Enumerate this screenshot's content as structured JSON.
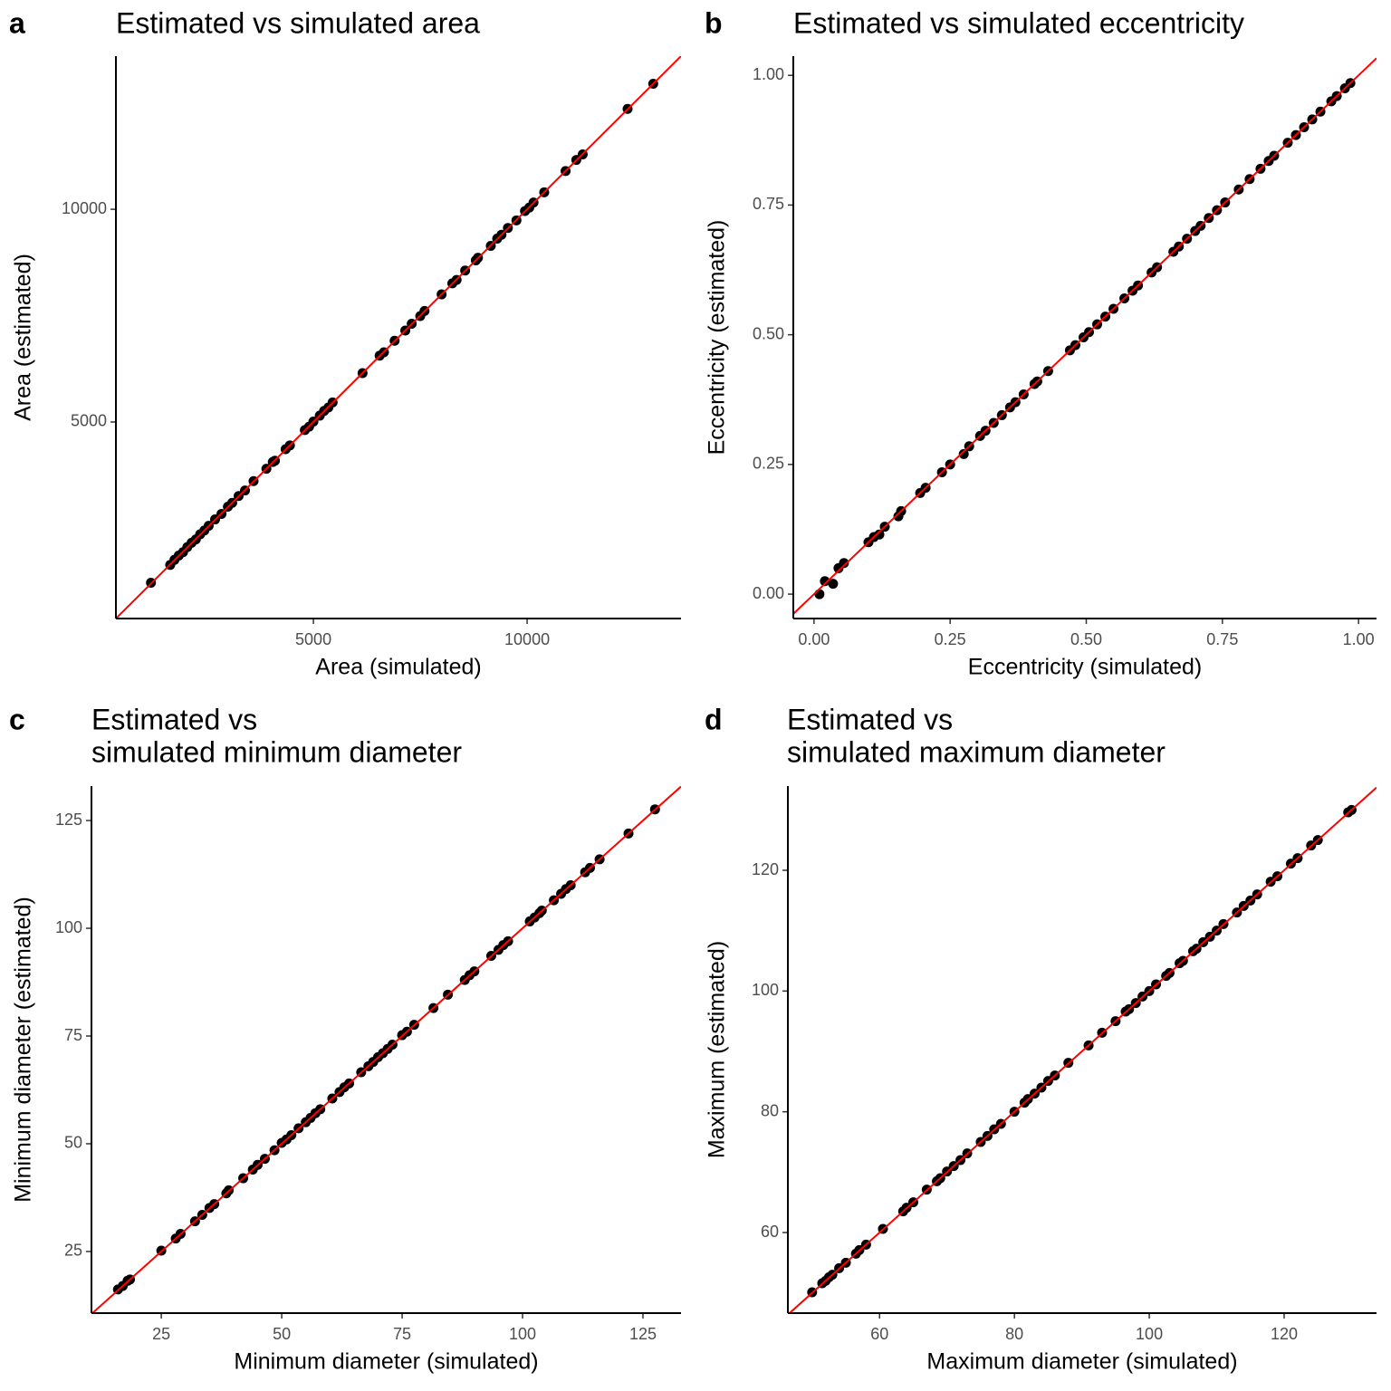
{
  "chart_data": [
    {
      "type": "scatter",
      "panel_label": "a",
      "title": [
        "Estimated vs simulated area"
      ],
      "xlabel": "Area (simulated)",
      "ylabel": "Area (estimated)",
      "color": "#000000",
      "x": [
        1200,
        1650,
        1750,
        1850,
        1950,
        2050,
        2150,
        2250,
        2350,
        2450,
        2550,
        2700,
        2850,
        3000,
        3100,
        3250,
        3400,
        3600,
        3900,
        4050,
        4100,
        4350,
        4450,
        4800,
        4900,
        5000,
        5150,
        5250,
        5350,
        5450,
        6150,
        6550,
        6650,
        6900,
        7150,
        7300,
        7500,
        7600,
        8000,
        8250,
        8350,
        8550,
        8800,
        8850,
        9150,
        9300,
        9400,
        9550,
        9750,
        9950,
        10050,
        10150,
        10400,
        10900,
        11150,
        11300,
        12350,
        12950
      ],
      "y": [
        1220,
        1640,
        1760,
        1860,
        1940,
        2060,
        2160,
        2240,
        2360,
        2450,
        2560,
        2710,
        2840,
        3010,
        3100,
        3260,
        3390,
        3610,
        3900,
        4060,
        4090,
        4360,
        4450,
        4810,
        4890,
        5010,
        5150,
        5260,
        5340,
        5460,
        6150,
        6560,
        6640,
        6910,
        7150,
        7310,
        7490,
        7610,
        8000,
        8260,
        8340,
        8560,
        8800,
        8860,
        9140,
        9310,
        9400,
        9560,
        9740,
        9960,
        10040,
        10160,
        10400,
        10900,
        11160,
        11290,
        12360,
        12950
      ],
      "xlim": [
        380,
        13600
      ],
      "ylim": [
        380,
        13600
      ],
      "xticks": [
        5000,
        10000
      ],
      "yticks": [
        5000,
        10000
      ],
      "reference_line": {
        "slope": 1,
        "intercept": 0,
        "color": "#ff0000"
      }
    },
    {
      "type": "scatter",
      "panel_label": "b",
      "title": [
        "Estimated vs simulated eccentricity"
      ],
      "xlabel": "Eccentricity (simulated)",
      "ylabel": "Eccentricity (estimated)",
      "color": "#000000",
      "x": [
        0.01,
        0.02,
        0.035,
        0.045,
        0.055,
        0.1,
        0.11,
        0.12,
        0.13,
        0.155,
        0.16,
        0.195,
        0.205,
        0.235,
        0.25,
        0.275,
        0.285,
        0.305,
        0.315,
        0.33,
        0.345,
        0.36,
        0.37,
        0.385,
        0.405,
        0.41,
        0.43,
        0.47,
        0.48,
        0.495,
        0.505,
        0.52,
        0.535,
        0.55,
        0.57,
        0.585,
        0.595,
        0.62,
        0.63,
        0.66,
        0.67,
        0.685,
        0.7,
        0.71,
        0.725,
        0.74,
        0.755,
        0.78,
        0.8,
        0.82,
        0.835,
        0.845,
        0.87,
        0.885,
        0.9,
        0.915,
        0.93,
        0.95,
        0.96,
        0.975,
        0.985
      ],
      "y": [
        0.0,
        0.025,
        0.02,
        0.05,
        0.06,
        0.1,
        0.11,
        0.115,
        0.13,
        0.15,
        0.16,
        0.195,
        0.205,
        0.235,
        0.25,
        0.27,
        0.285,
        0.305,
        0.315,
        0.33,
        0.345,
        0.36,
        0.37,
        0.385,
        0.405,
        0.41,
        0.43,
        0.47,
        0.48,
        0.495,
        0.505,
        0.52,
        0.535,
        0.55,
        0.57,
        0.585,
        0.595,
        0.62,
        0.63,
        0.66,
        0.67,
        0.685,
        0.7,
        0.71,
        0.725,
        0.74,
        0.755,
        0.78,
        0.8,
        0.82,
        0.835,
        0.845,
        0.87,
        0.885,
        0.9,
        0.915,
        0.93,
        0.95,
        0.96,
        0.975,
        0.985
      ],
      "xlim": [
        -0.038,
        1.033
      ],
      "ylim": [
        -0.047,
        1.037
      ],
      "xticks": [
        {
          "value": 0,
          "label": "0.00"
        },
        0.25,
        {
          "value": 0.5,
          "label": "0.50"
        },
        0.75,
        {
          "value": 1,
          "label": "1.00"
        }
      ],
      "yticks": [
        {
          "value": 0,
          "label": "0.00"
        },
        0.25,
        {
          "value": 0.5,
          "label": "0.50"
        },
        0.75,
        {
          "value": 1,
          "label": "1.00"
        }
      ],
      "reference_line": {
        "slope": 1,
        "intercept": 0,
        "color": "#ff0000"
      }
    },
    {
      "type": "scatter",
      "panel_label": "c",
      "title": [
        "Estimated vs",
        "simulated minimum diameter"
      ],
      "xlabel": "Minimum diameter (simulated)",
      "ylabel": "Minimum diameter (estimated)",
      "color": "#000000",
      "x": [
        16,
        17,
        18,
        18.5,
        25,
        28,
        29,
        32,
        33.5,
        35,
        36,
        38.5,
        39,
        42,
        44,
        45,
        46.5,
        48.5,
        50,
        51,
        52,
        53.5,
        55,
        56,
        57,
        58,
        60.5,
        62,
        63,
        64,
        66.5,
        68,
        69,
        70,
        71,
        72,
        73,
        75,
        76,
        77.5,
        81.5,
        84.5,
        88,
        89,
        90,
        93.5,
        95,
        96,
        97,
        101.5,
        102.5,
        103.5,
        104,
        106.5,
        108,
        109,
        110,
        113,
        114,
        116,
        122,
        127.5
      ],
      "y": [
        16.2,
        17,
        18.2,
        18.5,
        25.2,
        28,
        29.1,
        32,
        33.5,
        35.1,
        36,
        38.5,
        39.2,
        42,
        44,
        45.1,
        46.5,
        48.5,
        50.2,
        51,
        52,
        53.6,
        55,
        56,
        57.1,
        58,
        60.5,
        62,
        63.1,
        64,
        66.6,
        68,
        69,
        70.1,
        71,
        72,
        73,
        75.2,
        76,
        77.6,
        81.5,
        84.6,
        88,
        89.1,
        90,
        93.6,
        95,
        96.1,
        97,
        101.6,
        102.5,
        103.5,
        104.1,
        106.5,
        108,
        109.1,
        110,
        113,
        114,
        116,
        122,
        127.6
      ],
      "xlim": [
        10.5,
        132.9
      ],
      "ylim": [
        10.7,
        133
      ],
      "xticks": [
        25,
        50,
        75,
        100,
        125
      ],
      "yticks": [
        25,
        50,
        75,
        100,
        125
      ],
      "reference_line": {
        "slope": 1,
        "intercept": 0,
        "color": "#ff0000"
      }
    },
    {
      "type": "scatter",
      "panel_label": "d",
      "title": [
        "Estimated vs",
        "simulated maximum diameter"
      ],
      "xlabel": "Maximum diameter (simulated)",
      "ylabel": "Maximum (estimated)",
      "color": "#000000",
      "x": [
        50,
        51.5,
        52,
        52.5,
        53,
        54,
        55,
        56.5,
        57,
        58,
        60.5,
        63.5,
        64,
        65,
        67,
        68.5,
        69,
        70,
        71,
        72,
        73,
        75,
        76,
        77,
        78,
        80,
        81.5,
        82,
        83,
        84,
        85,
        86,
        88,
        91,
        93,
        95,
        96.5,
        97,
        98,
        99,
        100,
        101,
        102.5,
        103,
        104.5,
        105,
        106.5,
        107,
        108,
        109,
        110,
        111,
        113,
        114,
        115,
        116,
        118,
        119,
        121,
        122,
        124,
        125,
        129.5,
        130
      ],
      "y": [
        50.1,
        51.6,
        52,
        52.6,
        53,
        54.1,
        55,
        56.5,
        57.1,
        58,
        60.6,
        63.5,
        64.1,
        65,
        67.1,
        68.5,
        69,
        70.1,
        71,
        72,
        73.1,
        75,
        76,
        77.1,
        78,
        80,
        81.5,
        82.1,
        83,
        84,
        85.1,
        86,
        88.1,
        91,
        93.1,
        95,
        96.6,
        97,
        98,
        99.1,
        100,
        101.1,
        102.5,
        103,
        104.6,
        105,
        106.6,
        107,
        108.1,
        109,
        110,
        111.1,
        113,
        114.1,
        115,
        116,
        118.1,
        119,
        121.1,
        122,
        124.1,
        125,
        129.6,
        130
      ],
      "xlim": [
        46.4,
        133.7
      ],
      "ylim": [
        46.65,
        133.95
      ],
      "xticks": [
        60,
        80,
        100,
        120
      ],
      "yticks": [
        60,
        80,
        100,
        120
      ],
      "reference_line": {
        "slope": 1,
        "intercept": 0,
        "color": "#ff0000"
      }
    }
  ]
}
